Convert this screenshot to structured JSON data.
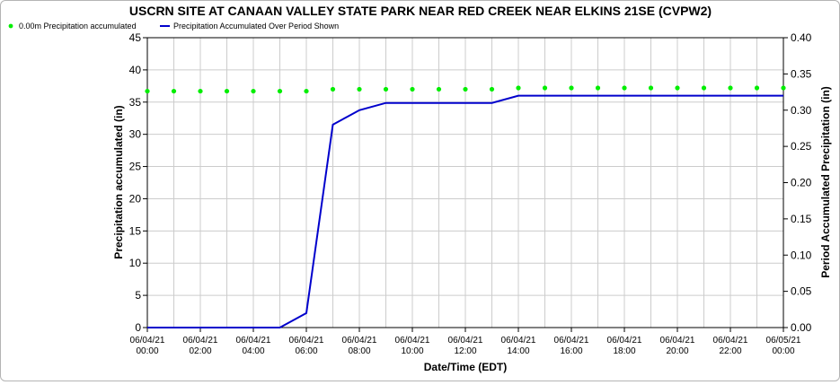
{
  "chart_data": {
    "type": "line",
    "title": "USCRN SITE AT CANAAN VALLEY STATE PARK NEAR RED CREEK NEAR ELKINS 21SE (CVPW2)",
    "xlabel": "Date/Time (EDT)",
    "ylabel_left": "Precipitation accumulated (in)",
    "ylabel_right": "Period Accumulated Precipitation (in)",
    "ylim_left": [
      0,
      45
    ],
    "ylim_right": [
      0,
      0.4
    ],
    "yticks_left": [
      "0",
      "5",
      "10",
      "15",
      "20",
      "25",
      "30",
      "35",
      "40",
      "45"
    ],
    "yticks_right": [
      "0.00",
      "0.05",
      "0.10",
      "0.15",
      "0.20",
      "0.25",
      "0.30",
      "0.35",
      "0.40"
    ],
    "xlim_hours": [
      0,
      24
    ],
    "xticks": [
      {
        "date": "06/04/21",
        "time": "00:00"
      },
      {
        "date": "06/04/21",
        "time": "02:00"
      },
      {
        "date": "06/04/21",
        "time": "04:00"
      },
      {
        "date": "06/04/21",
        "time": "06:00"
      },
      {
        "date": "06/04/21",
        "time": "08:00"
      },
      {
        "date": "06/04/21",
        "time": "10:00"
      },
      {
        "date": "06/04/21",
        "time": "12:00"
      },
      {
        "date": "06/04/21",
        "time": "14:00"
      },
      {
        "date": "06/04/21",
        "time": "16:00"
      },
      {
        "date": "06/04/21",
        "time": "18:00"
      },
      {
        "date": "06/04/21",
        "time": "20:00"
      },
      {
        "date": "06/04/21",
        "time": "22:00"
      },
      {
        "date": "06/05/21",
        "time": "00:00"
      }
    ],
    "grid": true,
    "legend_position": "top-left",
    "series": [
      {
        "name": "0.00m Precipitation accumulated",
        "kind": "points",
        "axis": "left",
        "color": "#00ee00",
        "x": [
          0,
          1,
          2,
          3,
          4,
          5,
          6,
          7,
          8,
          9,
          10,
          11,
          12,
          13,
          14,
          15,
          16,
          17,
          18,
          19,
          20,
          21,
          22,
          23,
          24
        ],
        "y": [
          36.7,
          36.7,
          36.7,
          36.7,
          36.7,
          36.7,
          36.7,
          37.0,
          37.0,
          37.0,
          37.0,
          37.0,
          37.0,
          37.0,
          37.2,
          37.2,
          37.2,
          37.2,
          37.2,
          37.2,
          37.2,
          37.2,
          37.2,
          37.2,
          37.2
        ]
      },
      {
        "name": "Precipitation Accumulated Over Period Shown",
        "kind": "line",
        "axis": "right",
        "color": "#0000cc",
        "x": [
          0,
          1,
          2,
          3,
          4,
          5,
          6,
          7,
          8,
          9,
          10,
          11,
          12,
          13,
          14,
          15,
          16,
          17,
          18,
          19,
          20,
          21,
          22,
          23,
          24
        ],
        "y": [
          0.0,
          0.0,
          0.0,
          0.0,
          0.0,
          0.0,
          0.02,
          0.28,
          0.3,
          0.31,
          0.31,
          0.31,
          0.31,
          0.31,
          0.32,
          0.32,
          0.32,
          0.32,
          0.32,
          0.32,
          0.32,
          0.32,
          0.32,
          0.32,
          0.32
        ]
      }
    ]
  }
}
